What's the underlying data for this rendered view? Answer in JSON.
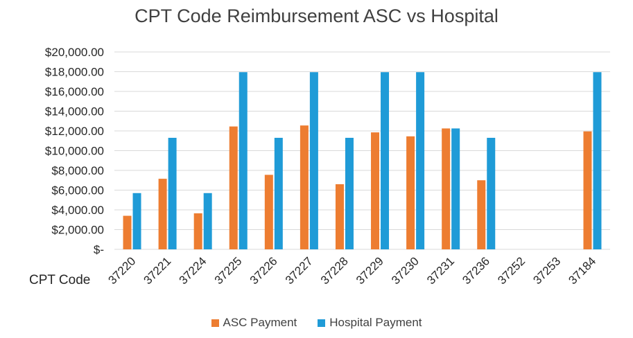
{
  "chart_data": {
    "type": "bar",
    "title": "CPT Code Reimbursement ASC vs Hospital",
    "xlabel": "CPT Code",
    "ylabel": "",
    "categories": [
      "37220",
      "37221",
      "37224",
      "37225",
      "37226",
      "37227",
      "37228",
      "37229",
      "37230",
      "37231",
      "37236",
      "37252",
      "37253",
      "37184"
    ],
    "series": [
      {
        "name": "ASC Payment",
        "color": "#ED7D31",
        "values": [
          3400,
          7150,
          3650,
          12450,
          7550,
          12550,
          6600,
          11850,
          11450,
          12250,
          7000,
          null,
          null,
          11950
        ]
      },
      {
        "name": "Hospital Payment",
        "color": "#1F9BD7",
        "values": [
          5700,
          11300,
          5700,
          17950,
          11300,
          17950,
          11300,
          17950,
          17950,
          12250,
          11300,
          null,
          null,
          17950
        ]
      }
    ],
    "ylim": [
      0,
      20000
    ],
    "yticks": [
      0,
      2000,
      4000,
      6000,
      8000,
      10000,
      12000,
      14000,
      16000,
      18000,
      20000
    ],
    "ytick_labels": [
      "$-",
      "$2,000.00",
      "$4,000.00",
      "$6,000.00",
      "$8,000.00",
      "$10,000.00",
      "$12,000.00",
      "$14,000.00",
      "$16,000.00",
      "$18,000.00",
      "$20,000.00"
    ],
    "grid": true,
    "gridline_color": "#D9D9D9",
    "legend_position": "bottom"
  }
}
